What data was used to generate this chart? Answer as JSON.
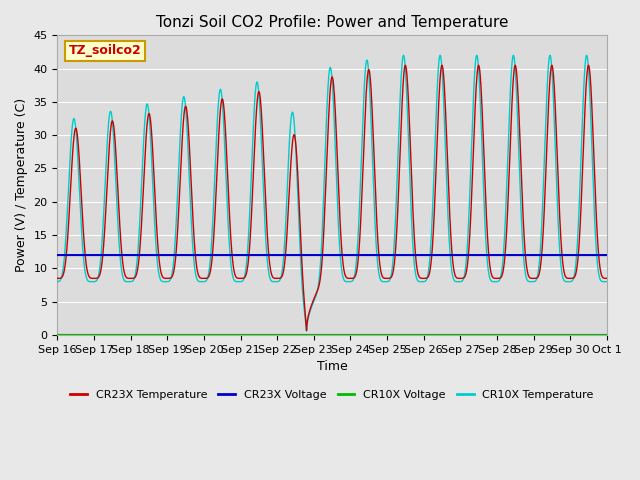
{
  "title": "Tonzi Soil CO2 Profile: Power and Temperature",
  "xlabel": "Time",
  "ylabel": "Power (V) / Temperature (C)",
  "ylim": [
    0,
    45
  ],
  "yticks": [
    0,
    5,
    10,
    15,
    20,
    25,
    30,
    35,
    40,
    45
  ],
  "fig_bg_color": "#e8e8e8",
  "plot_bg_color": "#e8e8e8",
  "plot_inner_bg": "#e0e0e0",
  "legend_box_label": "TZ_soilco2",
  "legend_box_facecolor": "#ffffcc",
  "legend_box_edgecolor": "#cc9900",
  "cr23x_temp_color": "#cc0000",
  "cr23x_volt_color": "#0000cc",
  "cr10x_volt_color": "#00bb00",
  "cr10x_temp_color": "#00cccc",
  "cr23x_volt_value": 12.0,
  "cr10x_volt_value": 0.0,
  "x_tick_labels": [
    "Sep 16",
    "Sep 17",
    "Sep 18",
    "Sep 19",
    "Sep 20",
    "Sep 21",
    "Sep 22",
    "Sep 23",
    "Sep 24",
    "Sep 25",
    "Sep 26",
    "Sep 27",
    "Sep 28",
    "Sep 29",
    "Sep 30",
    "Oct 1"
  ],
  "num_days": 15
}
